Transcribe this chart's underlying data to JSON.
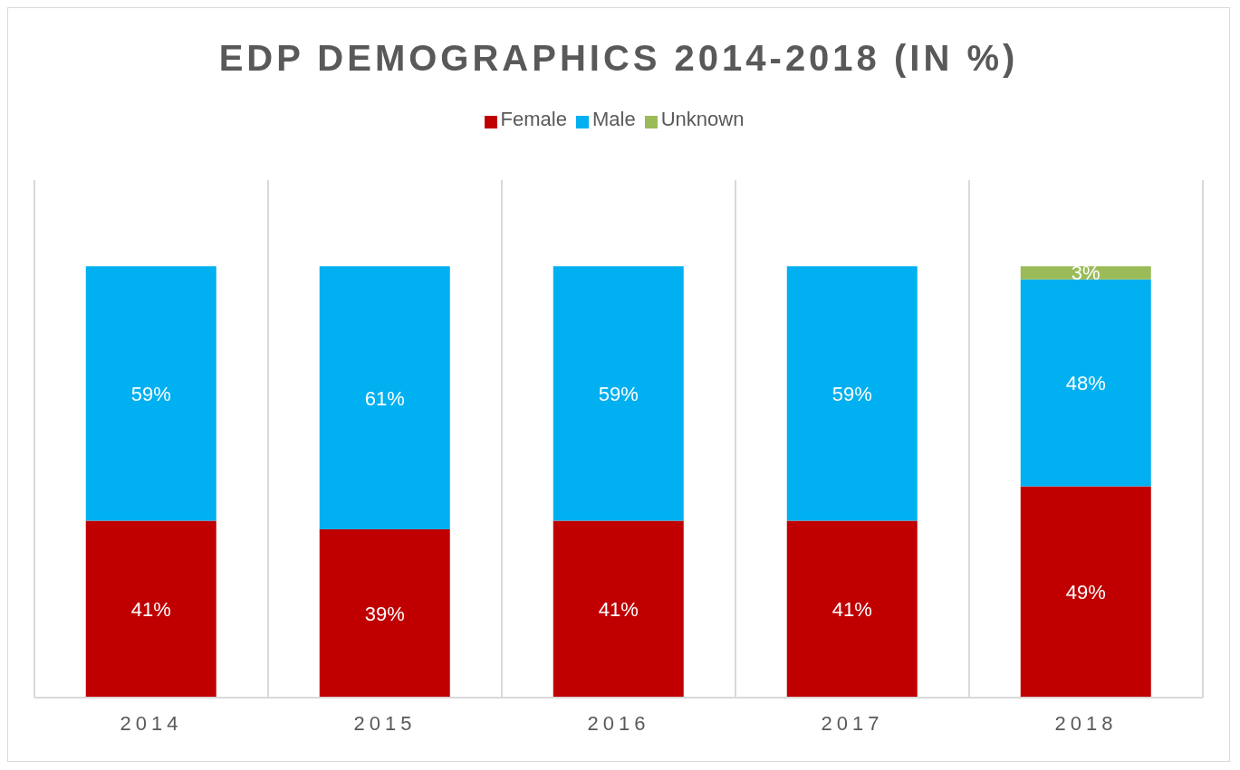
{
  "chart_data": {
    "type": "bar",
    "title": "EDP DEMOGRAPHICS 2014-2018 (IN %)",
    "categories": [
      "2014",
      "2015",
      "2016",
      "2017",
      "2018"
    ],
    "stacked": true,
    "grid": "x",
    "legend": "top",
    "series": [
      {
        "name": "Female",
        "color": "#c00000",
        "values": [
          41,
          39,
          41,
          41,
          49
        ],
        "value_labels": [
          "41%",
          "39%",
          "41%",
          "41%",
          "49%"
        ]
      },
      {
        "name": "Male",
        "color": "#00b0f0",
        "values": [
          59,
          61,
          59,
          59,
          48
        ],
        "value_labels": [
          "59%",
          "61%",
          "59%",
          "59%",
          "48%"
        ]
      },
      {
        "name": "Unknown",
        "color": "#9bbb59",
        "values": [
          null,
          null,
          null,
          null,
          3
        ],
        "value_labels": [
          null,
          null,
          null,
          null,
          "3%"
        ]
      }
    ]
  }
}
